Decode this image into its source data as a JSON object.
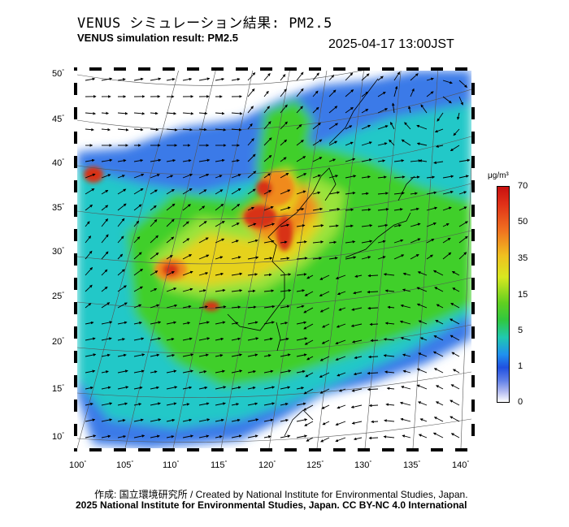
{
  "header": {
    "title_jp": "VENUS シミュレーション結果: PM2.5",
    "title_en": "VENUS simulation result: PM2.5",
    "timestamp": "2025-04-17 13:00JST"
  },
  "axes": {
    "lat_labels": [
      "50",
      "45",
      "40",
      "35",
      "30",
      "25",
      "20",
      "15",
      "10"
    ],
    "lon_labels": [
      "100",
      "105",
      "110",
      "115",
      "120",
      "125",
      "130",
      "135",
      "140"
    ],
    "degree_symbol": "°"
  },
  "colorbar": {
    "unit": "μg/m³",
    "labels": [
      "70",
      "50",
      "35",
      "15",
      "5",
      "1",
      "0"
    ]
  },
  "footer": {
    "credit": "作成: 国立環境研究所 / Created by National Institute for Environmental Studies, Japan.",
    "copyright": "2025 National Institute for Environmental Studies, Japan. CC BY-NC 4.0 International"
  },
  "colors": {
    "high": "#d83018",
    "orange": "#f08a1c",
    "yellow": "#e6d21a",
    "green": "#3fcf2a",
    "light_green": "#9ae33a",
    "cyan": "#20c8c8",
    "blue": "#2070e8",
    "light_blue": "#8aa8f0",
    "lowest": "#ffffff"
  }
}
